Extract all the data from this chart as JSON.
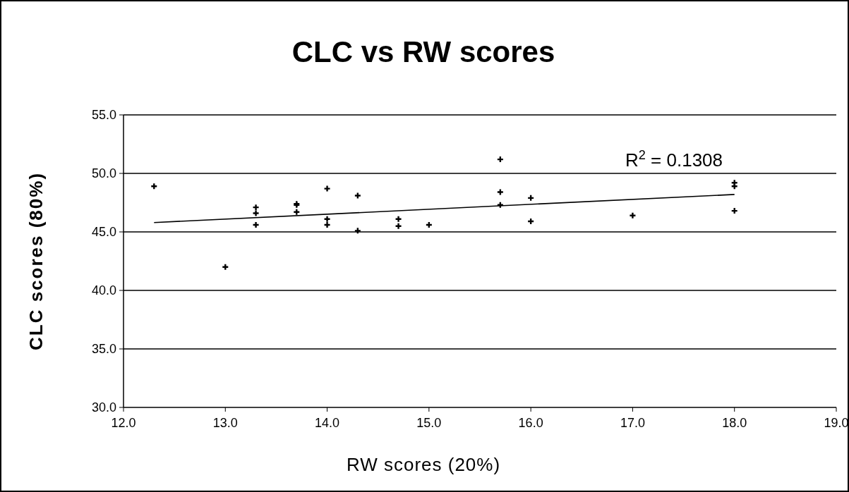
{
  "chart_data": {
    "type": "scatter",
    "title": "CLC vs RW scores",
    "xlabel": "RW scores (20%)",
    "ylabel": "CLC scores (80%)",
    "xlim": [
      12.0,
      19.0
    ],
    "xticks": [
      {
        "value": 12,
        "label": "12.0"
      },
      {
        "value": 13,
        "label": "13.0"
      },
      {
        "value": 14,
        "label": "14.0"
      },
      {
        "value": 15,
        "label": "15.0"
      },
      {
        "value": 16,
        "label": "16.0"
      },
      {
        "value": 17,
        "label": "17.0"
      },
      {
        "value": 18,
        "label": "18.0"
      },
      {
        "value": 19,
        "label": "19.0"
      }
    ],
    "ylim": [
      30.0,
      55.0
    ],
    "yticks": [
      {
        "value": 30,
        "label": "30.0"
      },
      {
        "value": 35,
        "label": "35.0"
      },
      {
        "value": 40,
        "label": "40.0"
      },
      {
        "value": 45,
        "label": "45.0"
      },
      {
        "value": 50,
        "label": "50.0"
      },
      {
        "value": 55,
        "label": "55.0"
      }
    ],
    "grid": "y",
    "series": [
      {
        "color": "#000000",
        "marker": "cross",
        "x": [
          12.3,
          13.0,
          13.3,
          13.3,
          13.3,
          13.7,
          13.7,
          13.7,
          14.0,
          14.0,
          14.0,
          14.3,
          14.3,
          14.7,
          14.7,
          15.0,
          15.7,
          15.7,
          15.7,
          16.0,
          16.0,
          17.0,
          18.0,
          18.0,
          18.0
        ],
        "values": [
          48.9,
          42.0,
          47.1,
          46.6,
          45.6,
          47.4,
          47.3,
          46.7,
          48.7,
          46.1,
          45.6,
          48.1,
          45.1,
          46.1,
          45.5,
          45.6,
          51.2,
          48.4,
          47.3,
          47.9,
          45.9,
          46.4,
          49.2,
          48.9,
          46.8
        ]
      },
      {
        "type": "line",
        "color": "#000000",
        "x": [
          12.3,
          18.0
        ],
        "values": [
          45.8,
          48.2
        ]
      }
    ],
    "annotations": [
      "R$^{2}$ = 0.1308"
    ]
  }
}
